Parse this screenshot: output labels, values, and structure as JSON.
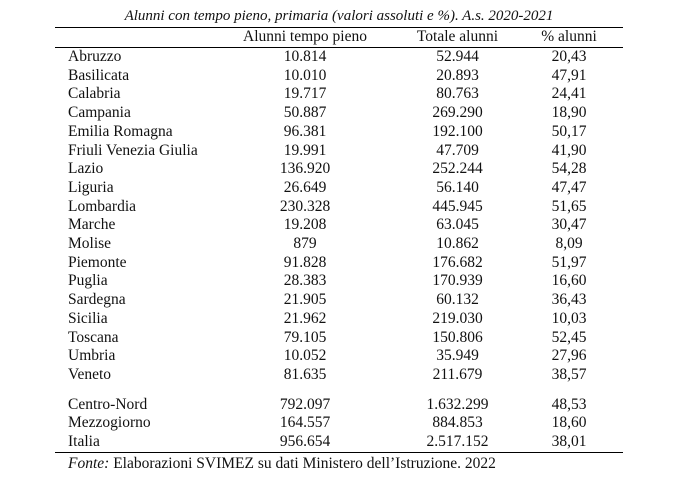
{
  "page": {
    "title": "Alunni con tempo pieno, primaria (valori assoluti e %). A.s. 2020-2021"
  },
  "table": {
    "columns": [
      "",
      "Alunni tempo pieno",
      "Totale alunni",
      "% alunni"
    ],
    "regions": [
      {
        "name": "Abruzzo",
        "tempo_pieno": "10.814",
        "totale": "52.944",
        "pct": "20,43"
      },
      {
        "name": "Basilicata",
        "tempo_pieno": "10.010",
        "totale": "20.893",
        "pct": "47,91"
      },
      {
        "name": "Calabria",
        "tempo_pieno": "19.717",
        "totale": "80.763",
        "pct": "24,41"
      },
      {
        "name": "Campania",
        "tempo_pieno": "50.887",
        "totale": "269.290",
        "pct": "18,90"
      },
      {
        "name": "Emilia Romagna",
        "tempo_pieno": "96.381",
        "totale": "192.100",
        "pct": "50,17"
      },
      {
        "name": "Friuli Venezia Giulia",
        "tempo_pieno": "19.991",
        "totale": "47.709",
        "pct": "41,90"
      },
      {
        "name": "Lazio",
        "tempo_pieno": "136.920",
        "totale": "252.244",
        "pct": "54,28"
      },
      {
        "name": "Liguria",
        "tempo_pieno": "26.649",
        "totale": "56.140",
        "pct": "47,47"
      },
      {
        "name": "Lombardia",
        "tempo_pieno": "230.328",
        "totale": "445.945",
        "pct": "51,65"
      },
      {
        "name": "Marche",
        "tempo_pieno": "19.208",
        "totale": "63.045",
        "pct": "30,47"
      },
      {
        "name": "Molise",
        "tempo_pieno": "879",
        "totale": "10.862",
        "pct": "8,09"
      },
      {
        "name": "Piemonte",
        "tempo_pieno": "91.828",
        "totale": "176.682",
        "pct": "51,97"
      },
      {
        "name": "Puglia",
        "tempo_pieno": "28.383",
        "totale": "170.939",
        "pct": "16,60"
      },
      {
        "name": "Sardegna",
        "tempo_pieno": "21.905",
        "totale": "60.132",
        "pct": "36,43"
      },
      {
        "name": "Sicilia",
        "tempo_pieno": "21.962",
        "totale": "219.030",
        "pct": "10,03"
      },
      {
        "name": "Toscana",
        "tempo_pieno": "79.105",
        "totale": "150.806",
        "pct": "52,45"
      },
      {
        "name": "Umbria",
        "tempo_pieno": "10.052",
        "totale": "35.949",
        "pct": "27,96"
      },
      {
        "name": "Veneto",
        "tempo_pieno": "81.635",
        "totale": "211.679",
        "pct": "38,57"
      }
    ],
    "aggregates": [
      {
        "name": "Centro-Nord",
        "tempo_pieno": "792.097",
        "totale": "1.632.299",
        "pct": "48,53"
      },
      {
        "name": "Mezzogiorno",
        "tempo_pieno": "164.557",
        "totale": "884.853",
        "pct": "18,60"
      },
      {
        "name": "Italia",
        "tempo_pieno": "956.654",
        "totale": "2.517.152",
        "pct": "38,01"
      }
    ]
  },
  "footer": {
    "fonte_label": "Fonte:",
    "fonte_text": " Elaborazioni SVIMEZ su dati Ministero dell’Istruzione. 2022"
  },
  "colors": {
    "text": "#111111",
    "rule": "#000000",
    "background": "#ffffff"
  }
}
